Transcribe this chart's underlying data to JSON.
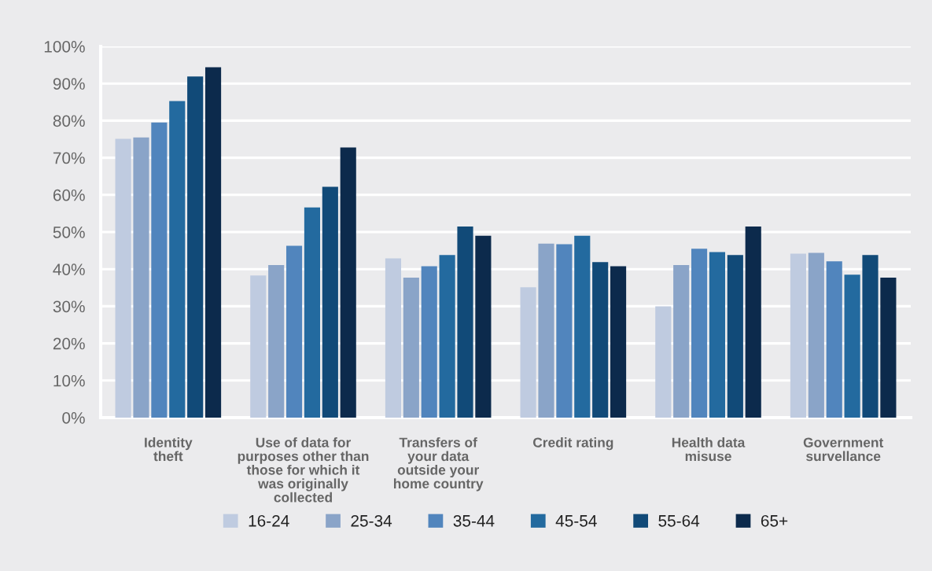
{
  "chart_data": {
    "type": "bar",
    "categories": [
      "Identity\ntheft",
      "Use of data for\npurposes other than\nthose for which it\nwas originally\ncollected",
      "Transfers of\nyour data\noutside your\nhome country",
      "Credit rating",
      "Health data\nmisuse",
      "Government\nsurvellance"
    ],
    "series": [
      {
        "name": "16-24",
        "color": "#bfcbe0",
        "values": [
          75.1,
          38.3,
          42.9,
          35.1,
          30.0,
          44.2
        ]
      },
      {
        "name": "25-34",
        "color": "#8aa4c8",
        "values": [
          75.5,
          41.1,
          37.7,
          46.9,
          41.1,
          44.4
        ]
      },
      {
        "name": "35-44",
        "color": "#5185bd",
        "values": [
          79.5,
          46.3,
          40.8,
          46.7,
          45.5,
          42.1
        ]
      },
      {
        "name": "45-54",
        "color": "#236a9f",
        "values": [
          85.3,
          56.6,
          43.8,
          49.0,
          44.6,
          38.5
        ]
      },
      {
        "name": "55-64",
        "color": "#114a78",
        "values": [
          91.9,
          62.2,
          51.5,
          41.9,
          43.8,
          43.8
        ]
      },
      {
        "name": "65+",
        "color": "#0c2a4c",
        "values": [
          94.4,
          72.8,
          49.0,
          40.8,
          51.5,
          37.7
        ]
      }
    ],
    "ylim": [
      0,
      100
    ],
    "yticks": [
      {
        "value": 0,
        "label": "0%"
      },
      {
        "value": 10,
        "label": "10%"
      },
      {
        "value": 20,
        "label": "20%"
      },
      {
        "value": 30,
        "label": "30%"
      },
      {
        "value": 40,
        "label": "40%"
      },
      {
        "value": 50,
        "label": "50%"
      },
      {
        "value": 60,
        "label": "60%"
      },
      {
        "value": 70,
        "label": "70%"
      },
      {
        "value": 80,
        "label": "80%"
      },
      {
        "value": 90,
        "label": "90%"
      },
      {
        "value": 100,
        "label": "100%"
      }
    ],
    "grid": "y",
    "legend": "bottom"
  }
}
